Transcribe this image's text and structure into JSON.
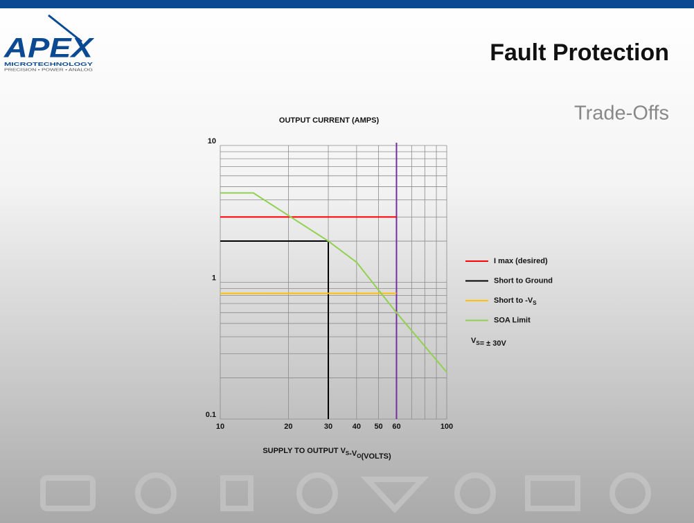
{
  "header": {
    "title": "Fault Protection",
    "subtitle": "Trade-Offs"
  },
  "logo": {
    "name": "APEX",
    "line1": "MICROTECHNOLOGY",
    "line2": "PRECISION • POWER • ANALOG"
  },
  "chart_data": {
    "type": "line",
    "title": "OUTPUT CURRENT (AMPS)",
    "x_label": "SUPPLY TO OUTPUT VS-VO(VOLTS)",
    "xlog": true,
    "ylog": true,
    "grid": true,
    "xlim": [
      10,
      100
    ],
    "ylim": [
      0.1,
      10
    ],
    "xticks": [
      10,
      20,
      30,
      40,
      50,
      60,
      100
    ],
    "xminorticks": [
      70,
      80,
      90
    ],
    "yticks": [
      0.1,
      1,
      10
    ],
    "yminorticks": [
      0.2,
      0.3,
      0.4,
      0.5,
      0.6,
      0.7,
      0.8,
      0.9,
      2,
      3,
      4,
      5,
      6,
      7,
      8,
      9
    ],
    "series": [
      {
        "name": "I max (desired)",
        "color": "#ff0000",
        "x": [
          10,
          60
        ],
        "values": [
          3,
          3
        ]
      },
      {
        "name": "Short to Ground",
        "color": "#000000",
        "x": [
          10,
          30,
          30
        ],
        "values": [
          2,
          2,
          0.1
        ]
      },
      {
        "name": "Short to -VS",
        "color": "#ffc000",
        "x": [
          10,
          60
        ],
        "values": [
          0.83,
          0.83
        ]
      },
      {
        "name": "SOA Limit",
        "color": "#92d050",
        "x": [
          10,
          14,
          30,
          40,
          60,
          100
        ],
        "values": [
          4.5,
          4.5,
          2,
          1.4,
          0.6,
          0.22
        ]
      }
    ],
    "vlines": [
      {
        "value": 60,
        "color": "#7030a0"
      }
    ],
    "annotation": "VS= ± 30V",
    "legend": "right"
  }
}
